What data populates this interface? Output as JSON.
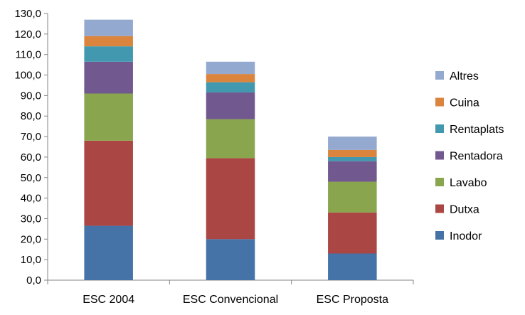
{
  "chart_data": {
    "type": "bar",
    "stacked": true,
    "title": "",
    "xlabel": "",
    "ylabel": "",
    "ylim": [
      0,
      130
    ],
    "ytick_step": 10,
    "ytick_labels": [
      "0,0",
      "10,0",
      "20,0",
      "30,0",
      "40,0",
      "50,0",
      "60,0",
      "70,0",
      "80,0",
      "90,0",
      "100,0",
      "110,0",
      "120,0",
      "130,0"
    ],
    "grid": false,
    "legend_position": "right",
    "categories": [
      "ESC 2004",
      "ESC Convencional",
      "ESC Proposta"
    ],
    "series": [
      {
        "name": "Inodor",
        "color": "#4572A7",
        "values": [
          26.5,
          20.0,
          13.0
        ]
      },
      {
        "name": "Dutxa",
        "color": "#AA4643",
        "values": [
          41.5,
          39.5,
          20.0
        ]
      },
      {
        "name": "Lavabo",
        "color": "#89A54E",
        "values": [
          23.0,
          19.0,
          15.0
        ]
      },
      {
        "name": "Rentadora",
        "color": "#71588F",
        "values": [
          15.5,
          13.0,
          10.0
        ]
      },
      {
        "name": "Rentaplats",
        "color": "#4198AF",
        "values": [
          7.5,
          5.0,
          2.0
        ]
      },
      {
        "name": "Cuina",
        "color": "#DB843D",
        "values": [
          5.0,
          4.0,
          3.5
        ]
      },
      {
        "name": "Altres",
        "color": "#93A9CF",
        "values": [
          8.0,
          6.0,
          6.5
        ]
      }
    ]
  }
}
